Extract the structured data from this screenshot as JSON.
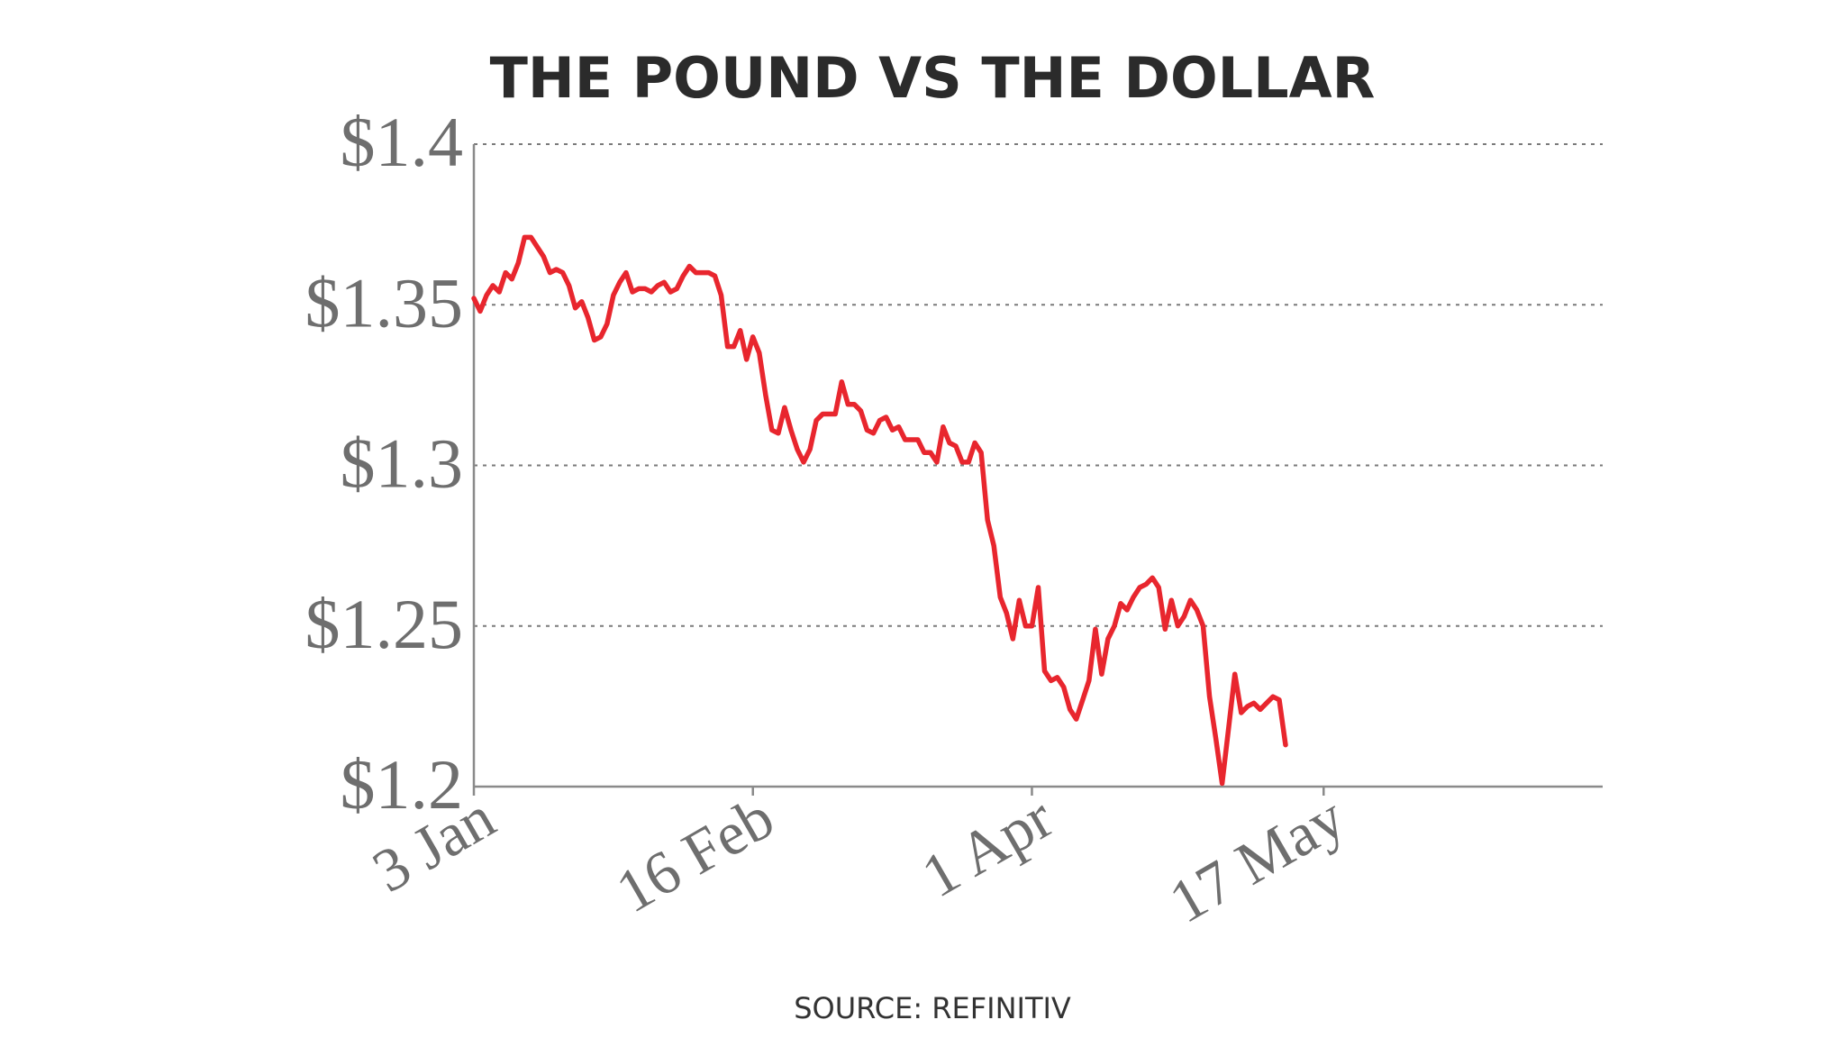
{
  "chart_data": {
    "type": "line",
    "title": "THE POUND VS THE DOLLAR",
    "source": "SOURCE: REFINITIV",
    "xlabel": "",
    "ylabel": "",
    "ylim": [
      1.2,
      1.4
    ],
    "yticks": [
      {
        "value": 1.4,
        "label": "$1.4"
      },
      {
        "value": 1.35,
        "label": "$1.35"
      },
      {
        "value": 1.3,
        "label": "$1.3"
      },
      {
        "value": 1.25,
        "label": "$1.25"
      },
      {
        "value": 1.2,
        "label": "$1.2"
      }
    ],
    "xticks": [
      {
        "date": "2022-01-03",
        "label": "3 Jan"
      },
      {
        "date": "2022-02-16",
        "label": "16 Feb"
      },
      {
        "date": "2022-04-01",
        "label": "1 Apr"
      },
      {
        "date": "2022-05-17",
        "label": "17 May"
      }
    ],
    "xrange": [
      "2022-01-03",
      "2022-06-30"
    ],
    "grid": true,
    "line_color": "#e8262e",
    "series": [
      {
        "points": [
          [
            "2022-01-03",
            1.352
          ],
          [
            "2022-01-04",
            1.348
          ],
          [
            "2022-01-05",
            1.353
          ],
          [
            "2022-01-06",
            1.356
          ],
          [
            "2022-01-07",
            1.354
          ],
          [
            "2022-01-08",
            1.36
          ],
          [
            "2022-01-09",
            1.358
          ],
          [
            "2022-01-10",
            1.363
          ],
          [
            "2022-01-11",
            1.371
          ],
          [
            "2022-01-12",
            1.371
          ],
          [
            "2022-01-13",
            1.368
          ],
          [
            "2022-01-14",
            1.365
          ],
          [
            "2022-01-15",
            1.36
          ],
          [
            "2022-01-16",
            1.361
          ],
          [
            "2022-01-17",
            1.36
          ],
          [
            "2022-01-18",
            1.356
          ],
          [
            "2022-01-19",
            1.349
          ],
          [
            "2022-01-20",
            1.351
          ],
          [
            "2022-01-21",
            1.346
          ],
          [
            "2022-01-22",
            1.339
          ],
          [
            "2022-01-23",
            1.34
          ],
          [
            "2022-01-24",
            1.344
          ],
          [
            "2022-01-25",
            1.353
          ],
          [
            "2022-01-26",
            1.357
          ],
          [
            "2022-01-27",
            1.36
          ],
          [
            "2022-01-28",
            1.354
          ],
          [
            "2022-01-29",
            1.355
          ],
          [
            "2022-01-30",
            1.355
          ],
          [
            "2022-01-31",
            1.354
          ],
          [
            "2022-02-01",
            1.356
          ],
          [
            "2022-02-02",
            1.357
          ],
          [
            "2022-02-03",
            1.354
          ],
          [
            "2022-02-04",
            1.355
          ],
          [
            "2022-02-05",
            1.359
          ],
          [
            "2022-02-06",
            1.362
          ],
          [
            "2022-02-07",
            1.36
          ],
          [
            "2022-02-08",
            1.36
          ],
          [
            "2022-02-09",
            1.36
          ],
          [
            "2022-02-10",
            1.359
          ],
          [
            "2022-02-11",
            1.353
          ],
          [
            "2022-02-12",
            1.337
          ],
          [
            "2022-02-13",
            1.337
          ],
          [
            "2022-02-14",
            1.342
          ],
          [
            "2022-02-15",
            1.333
          ],
          [
            "2022-02-16",
            1.34
          ],
          [
            "2022-02-17",
            1.335
          ],
          [
            "2022-02-18",
            1.322
          ],
          [
            "2022-02-19",
            1.311
          ],
          [
            "2022-02-20",
            1.31
          ],
          [
            "2022-02-21",
            1.318
          ],
          [
            "2022-02-22",
            1.311
          ],
          [
            "2022-02-23",
            1.305
          ],
          [
            "2022-02-24",
            1.301
          ],
          [
            "2022-02-25",
            1.305
          ],
          [
            "2022-02-26",
            1.314
          ],
          [
            "2022-02-27",
            1.316
          ],
          [
            "2022-02-28",
            1.316
          ],
          [
            "2022-03-01",
            1.316
          ],
          [
            "2022-03-02",
            1.326
          ],
          [
            "2022-03-03",
            1.319
          ],
          [
            "2022-03-04",
            1.319
          ],
          [
            "2022-03-05",
            1.317
          ],
          [
            "2022-03-06",
            1.311
          ],
          [
            "2022-03-07",
            1.31
          ],
          [
            "2022-03-08",
            1.314
          ],
          [
            "2022-03-09",
            1.315
          ],
          [
            "2022-03-10",
            1.311
          ],
          [
            "2022-03-11",
            1.312
          ],
          [
            "2022-03-12",
            1.308
          ],
          [
            "2022-03-13",
            1.308
          ],
          [
            "2022-03-14",
            1.308
          ],
          [
            "2022-03-15",
            1.304
          ],
          [
            "2022-03-16",
            1.304
          ],
          [
            "2022-03-17",
            1.301
          ],
          [
            "2022-03-18",
            1.312
          ],
          [
            "2022-03-19",
            1.307
          ],
          [
            "2022-03-20",
            1.306
          ],
          [
            "2022-03-21",
            1.301
          ],
          [
            "2022-03-22",
            1.301
          ],
          [
            "2022-03-23",
            1.307
          ],
          [
            "2022-03-24",
            1.304
          ],
          [
            "2022-03-25",
            1.283
          ],
          [
            "2022-03-26",
            1.275
          ],
          [
            "2022-03-27",
            1.259
          ],
          [
            "2022-03-28",
            1.254
          ],
          [
            "2022-03-29",
            1.246
          ],
          [
            "2022-03-30",
            1.258
          ],
          [
            "2022-03-31",
            1.25
          ],
          [
            "2022-04-01",
            1.25
          ],
          [
            "2022-04-02",
            1.262
          ],
          [
            "2022-04-03",
            1.236
          ],
          [
            "2022-04-04",
            1.233
          ],
          [
            "2022-04-05",
            1.234
          ],
          [
            "2022-04-06",
            1.231
          ],
          [
            "2022-04-07",
            1.224
          ],
          [
            "2022-04-08",
            1.221
          ],
          [
            "2022-04-09",
            1.227
          ],
          [
            "2022-04-10",
            1.233
          ],
          [
            "2022-04-11",
            1.249
          ],
          [
            "2022-04-12",
            1.235
          ],
          [
            "2022-04-13",
            1.246
          ],
          [
            "2022-04-14",
            1.25
          ],
          [
            "2022-04-15",
            1.257
          ],
          [
            "2022-04-16",
            1.255
          ],
          [
            "2022-04-17",
            1.259
          ],
          [
            "2022-04-18",
            1.262
          ],
          [
            "2022-04-19",
            1.263
          ],
          [
            "2022-04-20",
            1.265
          ],
          [
            "2022-04-21",
            1.262
          ],
          [
            "2022-04-22",
            1.249
          ],
          [
            "2022-04-23",
            1.258
          ],
          [
            "2022-04-24",
            1.25
          ],
          [
            "2022-04-25",
            1.253
          ],
          [
            "2022-04-26",
            1.258
          ],
          [
            "2022-04-27",
            1.255
          ],
          [
            "2022-04-28",
            1.25
          ],
          [
            "2022-04-29",
            1.228
          ],
          [
            "2022-04-30",
            1.215
          ],
          [
            "2022-05-01",
            1.201
          ],
          [
            "2022-05-02",
            1.218
          ],
          [
            "2022-05-03",
            1.235
          ],
          [
            "2022-05-04",
            1.223
          ],
          [
            "2022-05-05",
            1.225
          ],
          [
            "2022-05-06",
            1.226
          ],
          [
            "2022-05-07",
            1.224
          ],
          [
            "2022-05-08",
            1.226
          ],
          [
            "2022-05-09",
            1.228
          ],
          [
            "2022-05-10",
            1.227
          ],
          [
            "2022-05-11",
            1.213
          ]
        ]
      }
    ]
  }
}
